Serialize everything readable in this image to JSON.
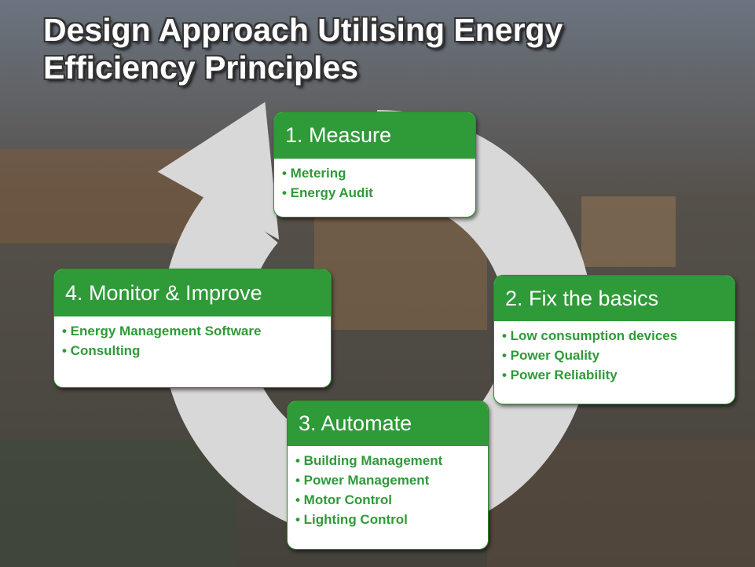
{
  "title": [
    "Design Approach Utilising Energy",
    "Efficiency Principles"
  ],
  "steps": [
    {
      "title": "1. Measure",
      "items": [
        "• Metering",
        "• Energy Audit"
      ]
    },
    {
      "title": "2. Fix the basics",
      "items": [
        "• Low consumption devices",
        "• Power Quality",
        "• Power Reliability"
      ]
    },
    {
      "title": "3. Automate",
      "items": [
        "• Building Management",
        "• Power Management",
        "• Motor Control",
        "• Lighting Control"
      ]
    },
    {
      "title": "4. Monitor & Improve",
      "items": [
        "• Energy Management Software",
        "• Consulting"
      ]
    }
  ]
}
